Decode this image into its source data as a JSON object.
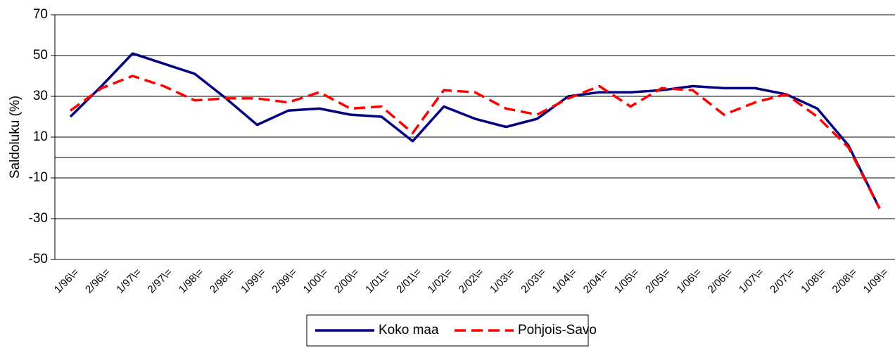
{
  "chart_data": {
    "type": "line",
    "y_label": "Saldoluku (%)",
    "categories": [
      "1/96\\=",
      "2/96\\=",
      "1/97\\=",
      "2/97\\=",
      "1/98\\=",
      "2/98\\=",
      "1/99\\=",
      "2/99\\=",
      "1/00\\=",
      "2/00\\=",
      "1/01\\=",
      "2/01\\=",
      "1/02\\=",
      "2/02\\=",
      "1/03\\=",
      "2/03\\=",
      "1/04\\=",
      "2/04\\=",
      "1/05\\=",
      "2/05\\=",
      "1/06\\=",
      "2/06\\=",
      "1/07\\=",
      "2/07\\=",
      "1/08\\=",
      "2/08\\=",
      "1/09\\="
    ],
    "series": [
      {
        "name": "Koko maa",
        "color": "#000080",
        "dashed": false,
        "values": [
          20,
          35,
          51,
          46,
          41,
          29,
          16,
          23,
          24,
          21,
          20,
          8,
          25,
          19,
          15,
          19,
          30,
          32,
          32,
          33,
          35,
          34,
          34,
          31,
          24,
          6,
          -25
        ]
      },
      {
        "name": "Pohjois-Savo",
        "color": "#ff0000",
        "dashed": true,
        "values": [
          23,
          34,
          40,
          35,
          28,
          29,
          29,
          27,
          32,
          24,
          25,
          12,
          33,
          32,
          24,
          21,
          29,
          35,
          25,
          34,
          33,
          21,
          27,
          31,
          20,
          5,
          -25
        ]
      }
    ],
    "ylim": [
      -50,
      70
    ],
    "yticks": [
      -50,
      -30,
      -10,
      10,
      30,
      50,
      70
    ],
    "grid": true,
    "legend": "bottom"
  }
}
